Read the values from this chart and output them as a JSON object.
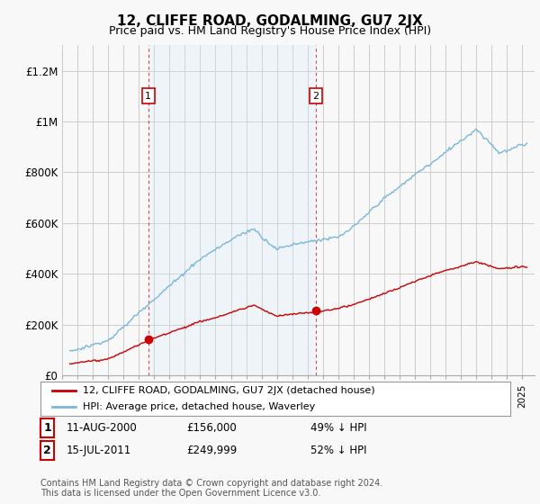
{
  "title": "12, CLIFFE ROAD, GODALMING, GU7 2JX",
  "subtitle": "Price paid vs. HM Land Registry's House Price Index (HPI)",
  "ylabel_ticks": [
    "£0",
    "£200K",
    "£400K",
    "£600K",
    "£800K",
    "£1M",
    "£1.2M"
  ],
  "ytick_values": [
    0,
    200000,
    400000,
    600000,
    800000,
    1000000,
    1200000
  ],
  "ylim": [
    0,
    1300000
  ],
  "xlim_start": 1995.2,
  "xlim_end": 2025.8,
  "hpi_color": "#7ab8d9",
  "hpi_fill_color": "#d6eaf8",
  "price_color": "#cc0000",
  "background_color": "#f8f8f8",
  "grid_color": "#cccccc",
  "sale1_year": 2000.62,
  "sale1_price": 156000,
  "sale2_year": 2011.54,
  "sale2_price": 249999,
  "legend_line1": "12, CLIFFE ROAD, GODALMING, GU7 2JX (detached house)",
  "legend_line2": "HPI: Average price, detached house, Waverley",
  "table_row1": [
    "1",
    "11-AUG-2000",
    "£156,000",
    "49% ↓ HPI"
  ],
  "table_row2": [
    "2",
    "15-JUL-2011",
    "£249,999",
    "52% ↓ HPI"
  ],
  "footer": "Contains HM Land Registry data © Crown copyright and database right 2024.\nThis data is licensed under the Open Government Licence v3.0."
}
